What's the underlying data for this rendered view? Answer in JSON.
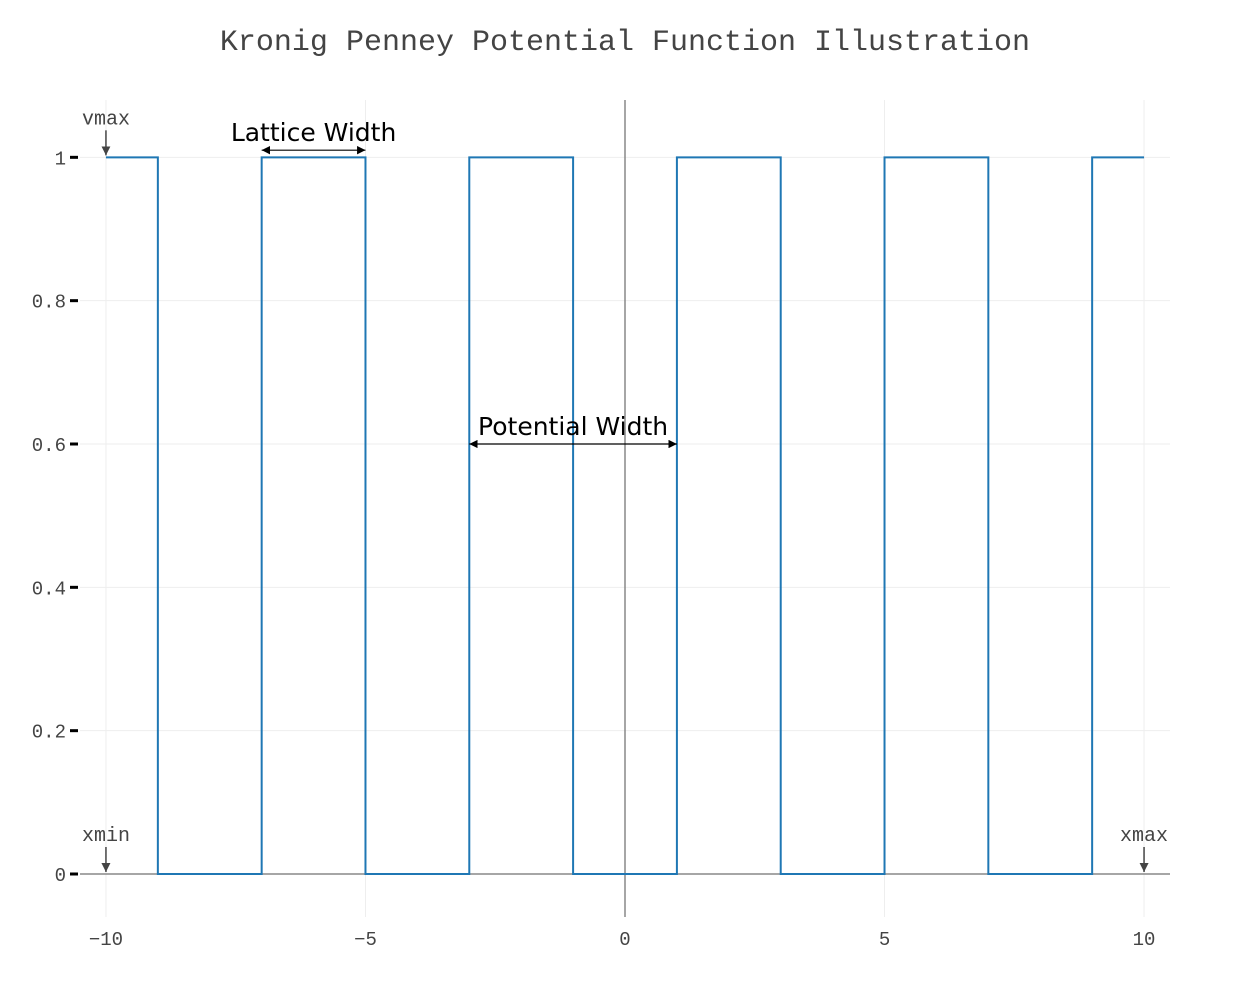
{
  "chart_data": {
    "type": "line",
    "line_shape": "step",
    "title": "Kronig Penney Potential Function Illustration",
    "xlabel": "",
    "ylabel": "",
    "xlim": [
      -10.5,
      10.5
    ],
    "ylim": [
      -0.06,
      1.08
    ],
    "x_ticks": [
      -10,
      -5,
      0,
      5,
      10
    ],
    "x_tick_labels": [
      "−10",
      "−5",
      "0",
      "5",
      "10"
    ],
    "y_ticks": [
      0,
      0.2,
      0.4,
      0.6,
      0.8,
      1
    ],
    "y_tick_labels": [
      "0",
      "0.2",
      "0.4",
      "0.6",
      "0.8",
      "1"
    ],
    "grid": true,
    "legend": "none",
    "series": [
      {
        "color": "#1f77b4",
        "x": [
          -10,
          -9,
          -9,
          -7,
          -7,
          -5,
          -5,
          -3,
          -3,
          -1,
          -1,
          1,
          1,
          3,
          3,
          5,
          5,
          7,
          7,
          9,
          9,
          10
        ],
        "y": [
          1,
          1,
          0,
          0,
          1,
          1,
          0,
          0,
          1,
          1,
          0,
          0,
          1,
          1,
          0,
          0,
          1,
          1,
          0,
          0,
          1,
          1
        ]
      }
    ],
    "annotations": {
      "vmax": {
        "text": "vmax",
        "x": -10,
        "y": 1
      },
      "xmin": {
        "text": "xmin",
        "x": -10,
        "y": 0
      },
      "xmax": {
        "text": "xmax",
        "x": 10,
        "y": 0
      },
      "lattice_width": {
        "text": "Lattice Width",
        "x0": -7,
        "x1": -5,
        "y": 1.01
      },
      "potential_width": {
        "text": "Potential Width",
        "x0": -3,
        "x1": 1,
        "y": 0.6
      }
    }
  }
}
